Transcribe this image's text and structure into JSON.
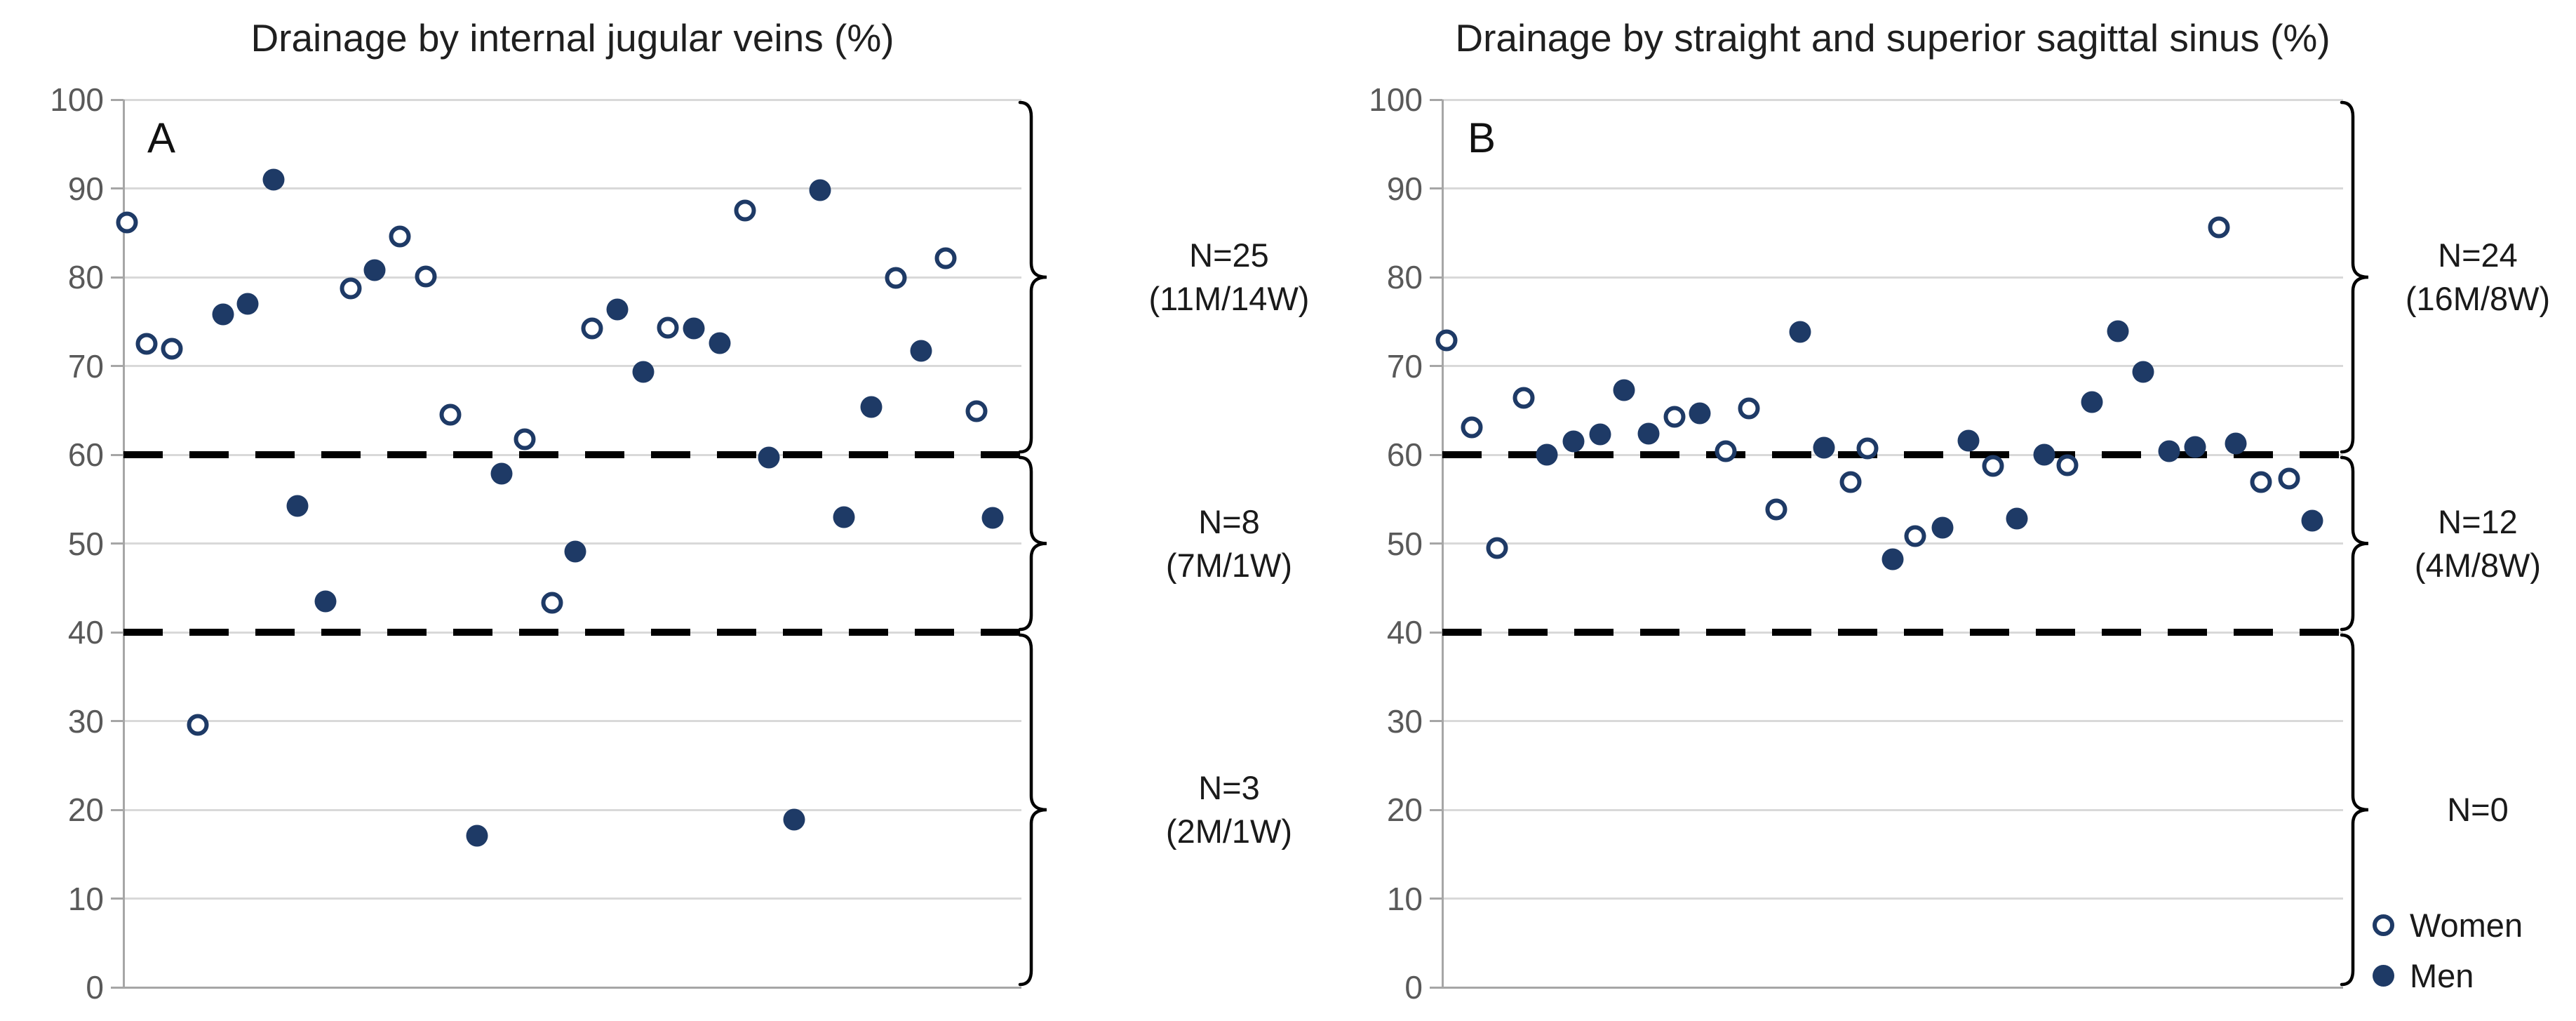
{
  "legend": {
    "women_label": "Women",
    "men_label": "Men"
  },
  "colors": {
    "marker": "#1e3a66",
    "gridline": "#d9d9d9",
    "axis": "#a6a6a6",
    "axis_label": "#595959",
    "threshold_dash": "#000000",
    "text": "#1a1a1a"
  },
  "chart_data": [
    {
      "type": "scatter",
      "panel_label": "A",
      "title": "Drainage by internal jugular veins (%)",
      "xlabel": "",
      "ylabel": "",
      "ylim": [
        0,
        100
      ],
      "y_ticks": [
        100,
        90,
        80,
        70,
        60,
        50,
        40,
        30,
        20,
        10,
        0
      ],
      "grid": "horizontal",
      "threshold_lines": [
        60,
        40
      ],
      "legend_position": "none",
      "series": [
        {
          "name": "Women",
          "marker": "open",
          "points": [
            [
              0.004,
              86.2
            ],
            [
              0.026,
              72.5
            ],
            [
              0.054,
              71.9
            ],
            [
              0.083,
              29.6
            ],
            [
              0.253,
              78.7
            ],
            [
              0.308,
              84.6
            ],
            [
              0.337,
              80.1
            ],
            [
              0.364,
              64.5
            ],
            [
              0.447,
              61.7
            ],
            [
              0.477,
              43.3
            ],
            [
              0.522,
              74.2
            ],
            [
              0.606,
              74.3
            ],
            [
              0.692,
              87.5
            ],
            [
              0.86,
              79.9
            ],
            [
              0.916,
              82.1
            ],
            [
              0.95,
              64.9
            ]
          ]
        },
        {
          "name": "Men",
          "marker": "filled",
          "points": [
            [
              0.111,
              75.8
            ],
            [
              0.138,
              77.0
            ],
            [
              0.167,
              91.0
            ],
            [
              0.194,
              54.2
            ],
            [
              0.225,
              43.5
            ],
            [
              0.28,
              80.8
            ],
            [
              0.394,
              17.1
            ],
            [
              0.421,
              57.9
            ],
            [
              0.503,
              49.1
            ],
            [
              0.55,
              76.4
            ],
            [
              0.579,
              69.3
            ],
            [
              0.635,
              74.2
            ],
            [
              0.664,
              72.6
            ],
            [
              0.719,
              59.7
            ],
            [
              0.747,
              18.9
            ],
            [
              0.776,
              89.8
            ],
            [
              0.802,
              53.0
            ],
            [
              0.833,
              65.4
            ],
            [
              0.888,
              71.7
            ],
            [
              0.968,
              52.9
            ]
          ]
        }
      ],
      "groups": [
        {
          "label": "N=25",
          "detail": "(11M/14W)",
          "range": [
            60,
            100
          ]
        },
        {
          "label": "N=8",
          "detail": "(7M/1W)",
          "range": [
            40,
            60
          ]
        },
        {
          "label": "N=3",
          "detail": "(2M/1W)",
          "range": [
            0,
            40
          ]
        }
      ]
    },
    {
      "type": "scatter",
      "panel_label": "B",
      "title": "Drainage by straight and superior sagittal sinus (%)",
      "xlabel": "",
      "ylabel": "",
      "ylim": [
        0,
        100
      ],
      "y_ticks": [
        100,
        90,
        80,
        70,
        60,
        50,
        40,
        30,
        20,
        10,
        0
      ],
      "grid": "horizontal",
      "threshold_lines": [
        60,
        40
      ],
      "legend_position": "bottom-right",
      "series": [
        {
          "name": "Women",
          "marker": "open",
          "points": [
            [
              0.005,
              72.9
            ],
            [
              0.033,
              63.1
            ],
            [
              0.061,
              49.5
            ],
            [
              0.09,
              66.4
            ],
            [
              0.258,
              64.3
            ],
            [
              0.315,
              60.4
            ],
            [
              0.34,
              65.2
            ],
            [
              0.371,
              53.8
            ],
            [
              0.453,
              56.9
            ],
            [
              0.472,
              60.7
            ],
            [
              0.525,
              50.8
            ],
            [
              0.611,
              58.7
            ],
            [
              0.694,
              58.8
            ],
            [
              0.862,
              85.6
            ],
            [
              0.909,
              56.9
            ],
            [
              0.94,
              57.3
            ]
          ]
        },
        {
          "name": "Men",
          "marker": "filled",
          "points": [
            [
              0.116,
              60.0
            ],
            [
              0.146,
              61.5
            ],
            [
              0.175,
              62.3
            ],
            [
              0.202,
              67.3
            ],
            [
              0.229,
              62.4
            ],
            [
              0.286,
              64.7
            ],
            [
              0.397,
              73.8
            ],
            [
              0.424,
              60.8
            ],
            [
              0.5,
              48.2
            ],
            [
              0.555,
              51.8
            ],
            [
              0.584,
              61.6
            ],
            [
              0.638,
              52.8
            ],
            [
              0.668,
              60.0
            ],
            [
              0.721,
              65.9
            ],
            [
              0.75,
              73.9
            ],
            [
              0.778,
              69.3
            ],
            [
              0.807,
              60.4
            ],
            [
              0.836,
              60.9
            ],
            [
              0.881,
              61.3
            ],
            [
              0.966,
              52.6
            ]
          ]
        }
      ],
      "groups": [
        {
          "label": "N=24",
          "detail": "(16M/8W)",
          "range": [
            60,
            100
          ]
        },
        {
          "label": "N=12",
          "detail": "(4M/8W)",
          "range": [
            40,
            60
          ]
        },
        {
          "label": "N=0",
          "detail": "",
          "range": [
            0,
            40
          ]
        }
      ]
    }
  ]
}
